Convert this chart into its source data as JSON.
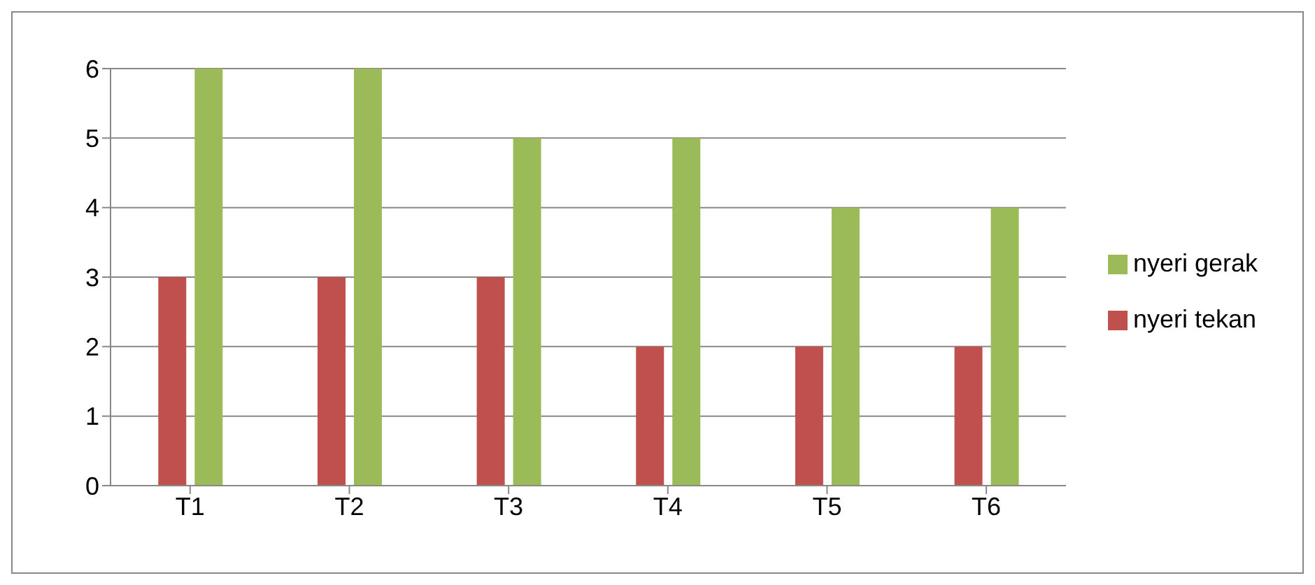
{
  "chart_data": {
    "type": "bar",
    "categories": [
      "T1",
      "T2",
      "T3",
      "T4",
      "T5",
      "T6"
    ],
    "series": [
      {
        "name": "nyeri tekan",
        "color": "#c0504d",
        "values": [
          3,
          3,
          3,
          2,
          2,
          2
        ]
      },
      {
        "name": "nyeri gerak",
        "color": "#9bbb59",
        "values": [
          6,
          6,
          5,
          5,
          4,
          4
        ]
      }
    ],
    "ylim": [
      0,
      6
    ],
    "yticks": [
      0,
      1,
      2,
      3,
      4,
      5,
      6
    ],
    "grid": "y",
    "legend": "right"
  }
}
